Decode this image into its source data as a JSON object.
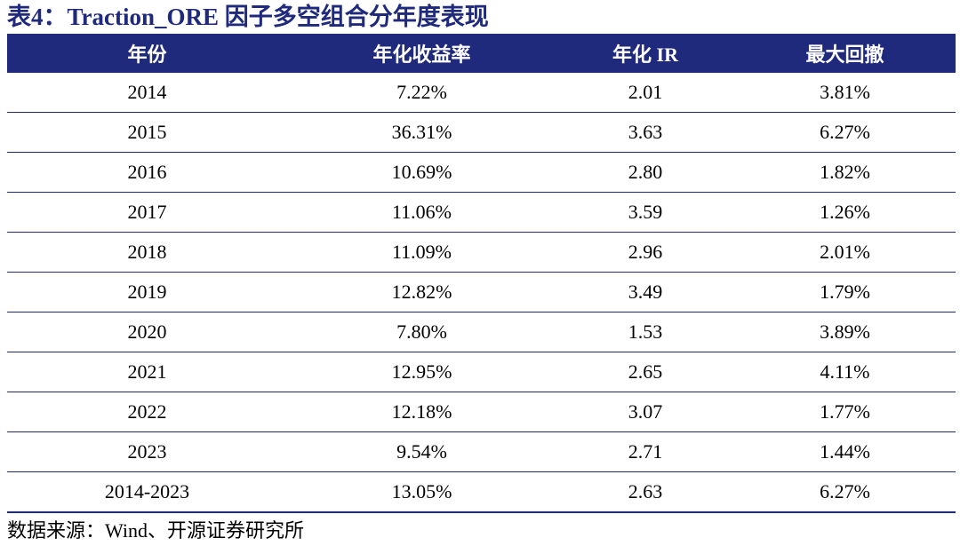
{
  "title": "表4：Traction_ORE 因子多空组合分年度表现",
  "colors": {
    "header_bg": "#1F2A7C",
    "title": "#1F2A7C",
    "rule": "#1F2A7C"
  },
  "table": {
    "headers": [
      "年份",
      "年化收益率",
      "年化 IR",
      "最大回撤"
    ],
    "rows": [
      [
        "2014",
        "7.22%",
        "2.01",
        "3.81%"
      ],
      [
        "2015",
        "36.31%",
        "3.63",
        "6.27%"
      ],
      [
        "2016",
        "10.69%",
        "2.80",
        "1.82%"
      ],
      [
        "2017",
        "11.06%",
        "3.59",
        "1.26%"
      ],
      [
        "2018",
        "11.09%",
        "2.96",
        "2.01%"
      ],
      [
        "2019",
        "12.82%",
        "3.49",
        "1.79%"
      ],
      [
        "2020",
        "7.80%",
        "1.53",
        "3.89%"
      ],
      [
        "2021",
        "12.95%",
        "2.65",
        "4.11%"
      ],
      [
        "2022",
        "12.18%",
        "3.07",
        "1.77%"
      ],
      [
        "2023",
        "9.54%",
        "2.71",
        "1.44%"
      ],
      [
        "2014-2023",
        "13.05%",
        "2.63",
        "6.27%"
      ]
    ]
  },
  "source": "数据来源：Wind、开源证券研究所"
}
